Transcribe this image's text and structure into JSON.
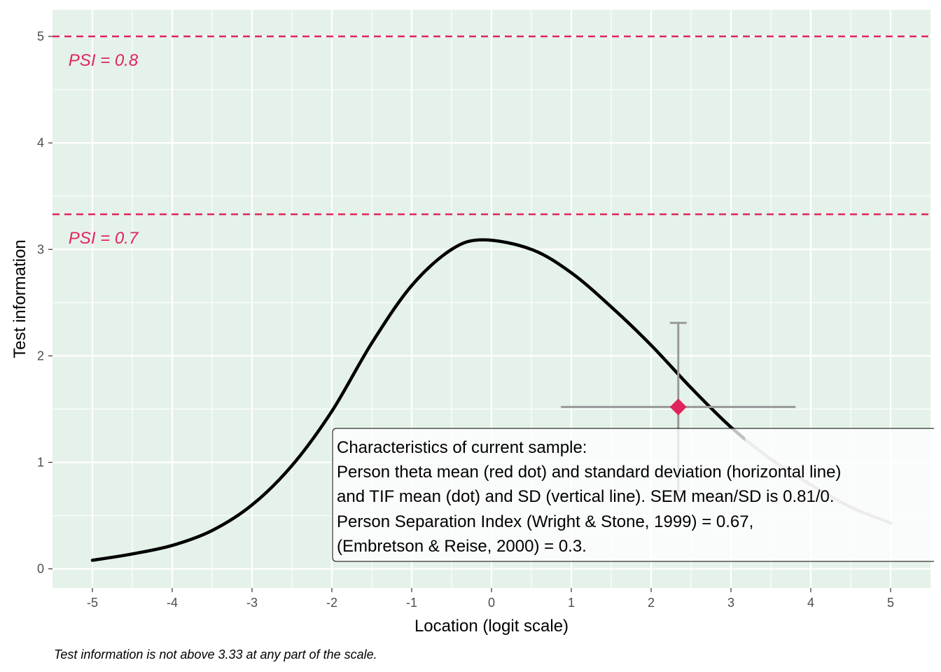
{
  "chart_data": {
    "type": "line",
    "xlabel": "Location (logit scale)",
    "ylabel": "Test information",
    "xlim": [
      -5.5,
      5.5
    ],
    "ylim": [
      -0.18,
      5.25
    ],
    "x_ticks": [
      -5,
      -4,
      -3,
      -2,
      -1,
      0,
      1,
      2,
      3,
      4,
      5
    ],
    "x_tick_labels": [
      "-5",
      "-4",
      "-3",
      "-2",
      "-1",
      "0",
      "1",
      "2",
      "3",
      "4",
      "5"
    ],
    "y_ticks": [
      0,
      1,
      2,
      3,
      4,
      5
    ],
    "y_tick_labels": [
      "0",
      "1",
      "2",
      "3",
      "4",
      "5"
    ],
    "grid": true,
    "colors": {
      "panel_background": "#e5f2ea",
      "grid": "#ffffff",
      "curve": "#000000",
      "curve_beyond_sample": "#b3b3b3",
      "reference_lines": "#e0245e",
      "error_bars": "#999999",
      "point": "#e0245e"
    },
    "series": [
      {
        "x": [
          -5,
          -4.5,
          -4,
          -3.5,
          -3,
          -2.5,
          -2,
          -1.5,
          -1,
          -0.5,
          -0.1,
          0.5,
          1,
          1.5,
          2,
          2.5,
          3,
          3.5,
          4,
          4.5,
          5
        ],
        "y": [
          0.08,
          0.14,
          0.22,
          0.36,
          0.6,
          0.97,
          1.48,
          2.12,
          2.66,
          3.0,
          3.09,
          3.0,
          2.78,
          2.46,
          2.1,
          1.7,
          1.33,
          1.03,
          0.79,
          0.58,
          0.43
        ]
      }
    ],
    "reference_lines": [
      {
        "y": 5.0,
        "label": "PSI = 0.8"
      },
      {
        "y": 3.33,
        "label": "PSI = 0.7"
      }
    ],
    "sample_point": {
      "x": 2.34,
      "y": 1.52,
      "x_sd": 1.47,
      "y_sd": 0.79
    },
    "annotation": {
      "lines": [
        "Characteristics of current sample:",
        "Person theta mean (red dot) and standard deviation (horizontal line)",
        "and TIF mean (dot) and SD (vertical line). SEM mean/SD is 0.81/0.",
        "Person Separation Index (Wright & Stone, 1999) = 0.67,",
        "(Embretson & Reise, 2000) = 0.3."
      ]
    },
    "caption": "Test information is not above 3.33 at any part of the scale."
  }
}
